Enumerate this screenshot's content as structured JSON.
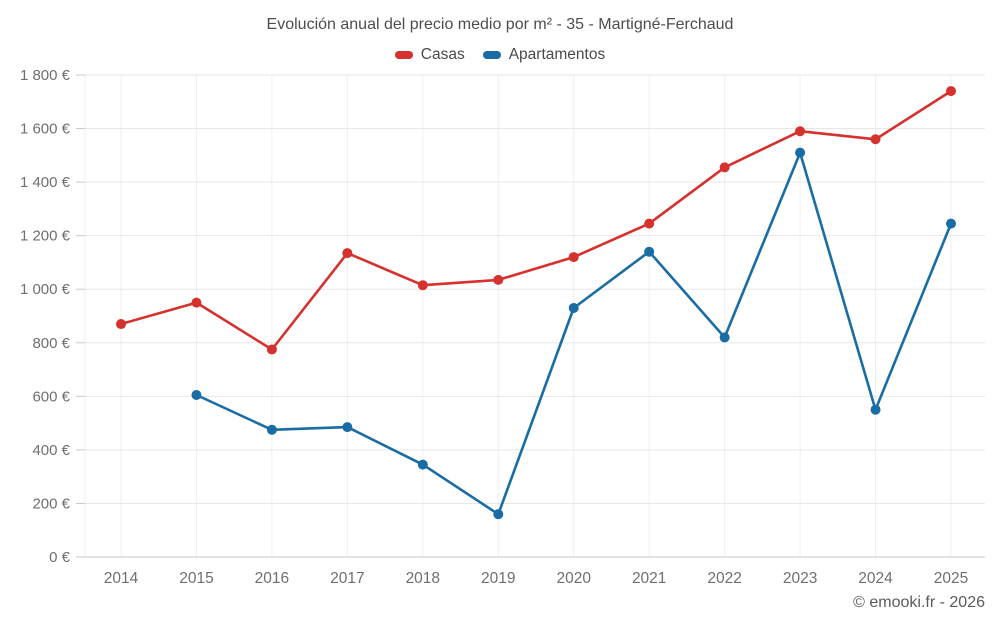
{
  "chart_data": {
    "type": "line",
    "title": "Evolución anual del precio medio por m² - 35 - Martigné-Ferchaud",
    "categories": [
      "2014",
      "2015",
      "2016",
      "2017",
      "2018",
      "2019",
      "2020",
      "2021",
      "2022",
      "2023",
      "2024",
      "2025"
    ],
    "series": [
      {
        "name": "Casas",
        "color": "#d5312d",
        "values": [
          870,
          950,
          775,
          1135,
          1015,
          1035,
          1120,
          1245,
          1455,
          1590,
          1560,
          1740
        ]
      },
      {
        "name": "Apartamentos",
        "color": "#1a6ca4",
        "values": [
          null,
          605,
          475,
          485,
          345,
          160,
          930,
          1140,
          820,
          1510,
          550,
          1245
        ]
      }
    ],
    "ylim": [
      0,
      1800
    ],
    "ytick_step": 200,
    "ytick_labels": [
      "0 €",
      "200 €",
      "400 €",
      "600 €",
      "800 €",
      "1 000 €",
      "1 200 €",
      "1 400 €",
      "1 600 €",
      "1 800 €"
    ],
    "grid": true,
    "legend_position": "top",
    "xlabel": "",
    "ylabel": ""
  },
  "footer": {
    "text": "© emooki.fr - 2026"
  },
  "colors": {
    "casas": "#d5312d",
    "apartamentos": "#1a6ca4",
    "grid_horizontal": "#e7e7e7",
    "grid_vertical": "#efefef",
    "axis": "#c9c9c9",
    "tick_label": "#6f6f6f",
    "title_text": "#4d4d4d"
  }
}
